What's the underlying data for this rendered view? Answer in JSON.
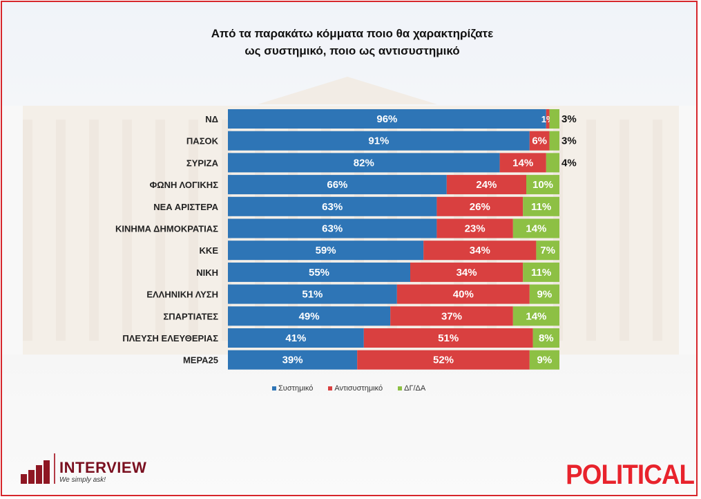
{
  "title_line1": "Από τα παρακάτω κόμματα ποιο θα χαρακτηρίζατε",
  "title_line2": "ως συστημικό, ποιο ως αντισυστημικό",
  "colors": {
    "systemic": "#2e75b6",
    "anti": "#d94040",
    "dk": "#8dc044",
    "frame": "#d6262b"
  },
  "chart_data": {
    "type": "bar",
    "orientation": "horizontal",
    "stacked": true,
    "title": "Από τα παρακάτω κόμματα ποιο θα χαρακτηρίζατε ως συστημικό, ποιο ως αντισυστημικό",
    "categories": [
      "ΝΔ",
      "ΠΑΣΟΚ",
      "ΣΥΡΙΖΑ",
      "ΦΩΝΗ ΛΟΓΙΚΗΣ",
      "ΝΕΑ ΑΡΙΣΤΕΡΑ",
      "ΚΙΝΗΜΑ ΔΗΜΟΚΡΑΤΙΑΣ",
      "ΚΚΕ",
      "ΝΙΚΗ",
      "ΕΛΛΗΝΙΚΗ ΛΥΣΗ",
      "ΣΠΑΡΤΙΑΤΕΣ",
      "ΠΛΕΥΣΗ ΕΛΕΥΘΕΡΙΑΣ",
      "ΜΕΡΑ25"
    ],
    "series": [
      {
        "name": "Συστημικό",
        "values": [
          96,
          91,
          82,
          66,
          63,
          63,
          59,
          55,
          51,
          49,
          41,
          39
        ]
      },
      {
        "name": "Αντισυστημικό",
        "values": [
          1,
          6,
          14,
          24,
          26,
          23,
          34,
          34,
          40,
          37,
          51,
          52
        ]
      },
      {
        "name": "ΔΓ/ΔΑ",
        "values": [
          3,
          3,
          4,
          10,
          11,
          14,
          7,
          11,
          9,
          14,
          8,
          9
        ]
      }
    ],
    "value_suffix": "%",
    "legend_position": "bottom"
  },
  "footer": {
    "interview_name": "INTERVIEW",
    "interview_tagline": "We simply ask!",
    "political_name": "POLITICAL"
  }
}
